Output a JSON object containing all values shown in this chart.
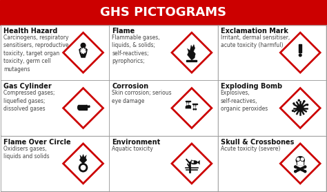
{
  "title": "GHS PICTOGRAMS",
  "title_bg": "#cc0000",
  "title_color": "#ffffff",
  "title_fontsize": 13,
  "cells": [
    {
      "row": 0,
      "col": 0,
      "name": "Health Hazard",
      "desc": "Carcinogens, respiratory\nsensitisers, reproductive\ntoxicity, target organ\ntoxicity, germ cell\nmutagens",
      "symbol": "health_hazard"
    },
    {
      "row": 0,
      "col": 1,
      "name": "Flame",
      "desc": "Flammable gases,\nliquids, & solids;\nself-reactives;\npyrophorics;",
      "symbol": "flame"
    },
    {
      "row": 0,
      "col": 2,
      "name": "Exclamation Mark",
      "desc": "Irritant, dermal sensitiser,\nacute toxicity (harmful)",
      "symbol": "exclamation"
    },
    {
      "row": 1,
      "col": 0,
      "name": "Gas Cylinder",
      "desc": "Compressed gases;\nliquefied gases;\ndissolved gases",
      "symbol": "gas_cylinder"
    },
    {
      "row": 1,
      "col": 1,
      "name": "Corrosion",
      "desc": "Skin corrosion; serious\neye damage",
      "symbol": "corrosion"
    },
    {
      "row": 1,
      "col": 2,
      "name": "Exploding Bomb",
      "desc": "Explosives,\nself-reactives,\norganic peroxides",
      "symbol": "exploding_bomb"
    },
    {
      "row": 2,
      "col": 0,
      "name": "Flame Over Circle",
      "desc": "Oxidisers gases,\nliquids and solids",
      "symbol": "flame_circle"
    },
    {
      "row": 2,
      "col": 1,
      "name": "Environment",
      "desc": "Aquatic toxicity",
      "symbol": "environment"
    },
    {
      "row": 2,
      "col": 2,
      "name": "Skull & Crossbones",
      "desc": "Acute toxicity (severe)",
      "symbol": "skull"
    }
  ],
  "diamond_color": "#cc0000",
  "diamond_fill": "#ffffff",
  "name_fontsize": 7.0,
  "desc_fontsize": 5.5,
  "name_color": "#111111",
  "desc_color": "#444444",
  "grid_line_color": "#999999",
  "outer_bg": "#e8e8e8"
}
